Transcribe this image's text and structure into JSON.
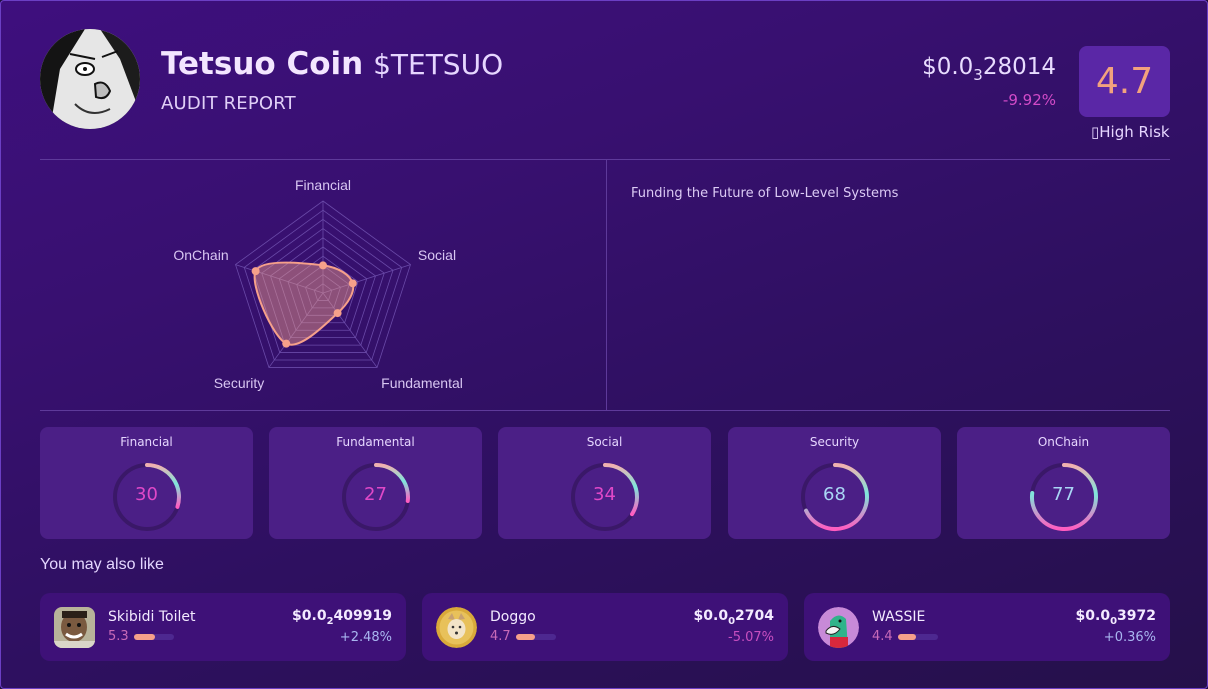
{
  "header": {
    "name": "Tetsuo Coin",
    "ticker": "$TETSUO",
    "subtitle": "AUDIT REPORT",
    "price_prefix": "$0.0",
    "price_zeros": "3",
    "price_digits": "28014",
    "change": "-9.92%",
    "score": "4.7",
    "risk_label": "▯High Risk"
  },
  "description": "Funding the Future of Low-Level Systems",
  "radar": {
    "axes": [
      "Financial",
      "Social",
      "Fundamental",
      "Security",
      "OnChain"
    ],
    "values": [
      30,
      34,
      27,
      68,
      77
    ],
    "max": 100,
    "rings": 10,
    "stroke_color": "#f6a08a",
    "fill_color": "rgba(246,160,138,0.45)"
  },
  "gauges": [
    {
      "label": "Financial",
      "value": "30",
      "level": "low"
    },
    {
      "label": "Fundamental",
      "value": "27",
      "level": "low"
    },
    {
      "label": "Social",
      "value": "34",
      "level": "low"
    },
    {
      "label": "Security",
      "value": "68",
      "level": "high"
    },
    {
      "label": "OnChain",
      "value": "77",
      "level": "high"
    }
  ],
  "also_like": {
    "title": "You may also like",
    "items": [
      {
        "name": "Skibidi Toilet",
        "score": "5.3",
        "score_pct": 53,
        "price_prefix": "$0.0",
        "price_zeros": "2",
        "price_digits": "409919",
        "change": "+2.48%",
        "direction": "pos"
      },
      {
        "name": "Doggo",
        "score": "4.7",
        "score_pct": 47,
        "price_prefix": "$0.0",
        "price_zeros": "0",
        "price_digits": "2704",
        "change": "-5.07%",
        "direction": "neg"
      },
      {
        "name": "WASSIE",
        "score": "4.4",
        "score_pct": 44,
        "price_prefix": "$0.0",
        "price_zeros": "0",
        "price_digits": "3972",
        "change": "+0.36%",
        "direction": "pos"
      }
    ]
  },
  "colors": {
    "background": "#3a1075",
    "card": "#4b1f86",
    "accent": "#f6a08a",
    "negative": "#d24bc8",
    "positive": "#a9b6f0"
  }
}
